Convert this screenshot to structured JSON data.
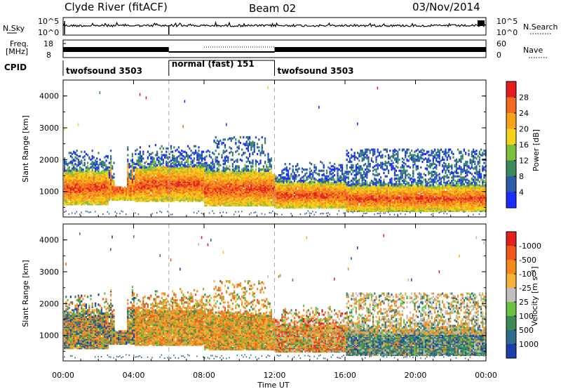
{
  "header": {
    "station": "Clyde River (fitACF)",
    "beam": "Beam 02",
    "date": "03/Nov/2014"
  },
  "noise_panel": {
    "left_label": "N.Sky",
    "left_ticks": [
      "10^5",
      "10^0"
    ],
    "right_ticks": [
      "10^5",
      "10^0"
    ],
    "legend_label": "N.Search"
  },
  "freq_panel": {
    "left_label_1": "Freq.",
    "left_label_2": "[MHz]",
    "left_ticks": [
      "18",
      "8"
    ],
    "right_ticks": [
      "60",
      "0"
    ],
    "legend_label": "Nave"
  },
  "cpid_panel": {
    "label": "CPID",
    "segments": [
      {
        "name": "twofsound 3503",
        "start": 0,
        "end": 6
      },
      {
        "name": "normal (fast) 151",
        "start": 6,
        "end": 12
      },
      {
        "name": "twofsound 3503",
        "start": 12,
        "end": 24
      }
    ]
  },
  "chart_data": [
    {
      "type": "heatmap",
      "name": "power",
      "ylabel": "Slant Range [km]",
      "xlabel": "Time UT",
      "xlim": [
        0,
        24
      ],
      "ylim": [
        200,
        4500
      ],
      "x_ticks": [
        "00:00",
        "04:00",
        "08:00",
        "12:00",
        "16:00",
        "20:00",
        "00:00"
      ],
      "y_ticks": [
        1000,
        2000,
        3000,
        4000
      ],
      "colorbar": {
        "label": "Power [dB]",
        "ticks": [
          "4",
          "8",
          "12",
          "16",
          "20",
          "24",
          "28"
        ],
        "colors": [
          "#1a2cff",
          "#2a5ca8",
          "#3a8a5e",
          "#7fbf3e",
          "#f4d21a",
          "#f7a21c",
          "#f36b1f",
          "#e41f1f"
        ]
      },
      "dashed_times": [
        6,
        12
      ]
    },
    {
      "type": "heatmap",
      "name": "velocity",
      "ylabel": "Slant Range [km]",
      "xlabel": "Time UT",
      "xlim": [
        0,
        24
      ],
      "ylim": [
        200,
        4500
      ],
      "x_ticks": [
        "00:00",
        "04:00",
        "08:00",
        "12:00",
        "16:00",
        "20:00",
        "00:00"
      ],
      "y_ticks": [
        1000,
        2000,
        3000,
        4000
      ],
      "colorbar": {
        "label": "Velocity [m s⁻¹]",
        "ticks": [
          "1000",
          "500",
          "100",
          "25",
          "-25",
          "-100",
          "-500",
          "-1000"
        ],
        "colors": [
          "#1b3fa8",
          "#2f6b8a",
          "#3c8a55",
          "#6cc23f",
          "#bfbfbf",
          "#f7b23a",
          "#f28a1e",
          "#ee5a1c",
          "#e41f1f"
        ]
      },
      "dashed_times": [
        6,
        12
      ]
    }
  ],
  "xaxis": {
    "ticks": [
      "00:00",
      "04:00",
      "08:00",
      "12:00",
      "16:00",
      "20:00",
      "00:00"
    ],
    "title": "Time UT"
  }
}
